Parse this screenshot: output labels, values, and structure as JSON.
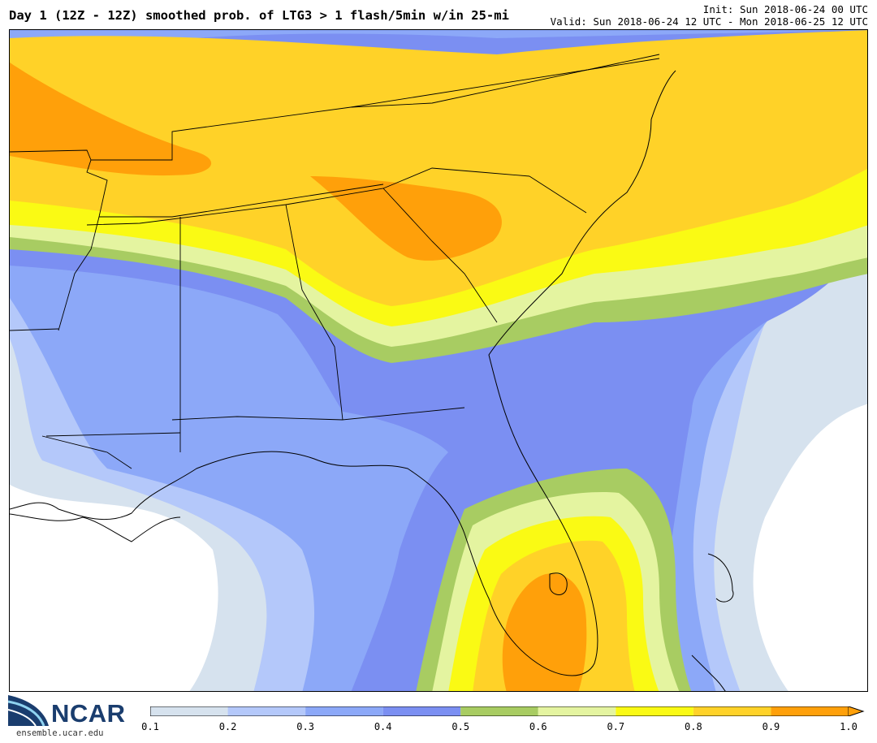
{
  "title": "Day 1 (12Z - 12Z) smoothed prob. of LTG3 > 1 flash/5min w/in 25-mi",
  "init": "Init: Sun 2018-06-24 00 UTC",
  "valid": "Valid: Sun 2018-06-24 12 UTC - Mon 2018-06-25 12 UTC",
  "logo": {
    "name": "NCAR",
    "url": "ensemble.ucar.edu"
  },
  "colorbar": {
    "colors": [
      "#d6e2ee",
      "#b4c8fa",
      "#8ca8f8",
      "#7b8ff2",
      "#a8cc62",
      "#e4f4a0",
      "#fafa14",
      "#ffd228",
      "#ffa00a"
    ],
    "tick_labels": [
      "0.1",
      "0.2",
      "0.3",
      "0.4",
      "0.5",
      "0.6",
      "0.7",
      "0.8",
      "0.9",
      "1.0"
    ]
  }
}
